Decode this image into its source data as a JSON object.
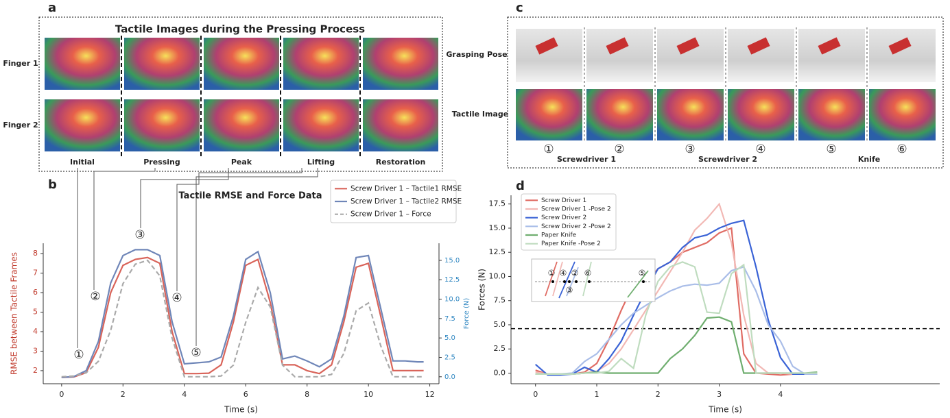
{
  "panel_a": {
    "label": "a",
    "title": "Tactile Images during the Pressing Process",
    "rows": [
      "Finger 1",
      "Finger 2"
    ],
    "stages": [
      "Initial",
      "Pressing",
      "Peak",
      "Lifting",
      "Restoration"
    ]
  },
  "panel_c": {
    "label": "c",
    "rows": [
      "Grasping Pose",
      "Tactile Image"
    ],
    "poses": [
      "①",
      "②",
      "③",
      "④",
      "⑤",
      "⑥"
    ],
    "tools": [
      "Screwdriver 1",
      "Screwdriver 2",
      "Knife"
    ]
  },
  "chart_data": [
    {
      "type": "line",
      "panel_label": "b",
      "title": "Tactile RMSE and Force Data",
      "xlabel": "Time (s)",
      "ylabel": "RMSE between Tactile Frames",
      "y2label": "Force (N)",
      "y_axis_color": "#c0392b",
      "y2_axis_color": "#2e86c1",
      "markers": [
        "①",
        "②",
        "③",
        "④",
        "⑤"
      ],
      "xlim": [
        -0.6,
        12.3
      ],
      "xticks": [
        0,
        2,
        4,
        6,
        8,
        10,
        12
      ],
      "ylim": [
        1.33,
        8.53
      ],
      "yticks": [
        2,
        3,
        4,
        5,
        6,
        7,
        8
      ],
      "y2lim": [
        -0.9,
        17.2
      ],
      "y2ticks": [
        {
          "value": 0,
          "label": "0.0"
        },
        {
          "value": 2.5,
          "label": "2.5"
        },
        {
          "value": 5,
          "label": "5.0"
        },
        {
          "value": 7.5,
          "label": "7.5"
        },
        {
          "value": 10,
          "label": "10.0"
        },
        {
          "value": 12.5,
          "label": "12.5"
        },
        {
          "value": 15,
          "label": "15.0"
        }
      ],
      "x": [
        0,
        0.4,
        0.8,
        1.2,
        1.6,
        2.0,
        2.4,
        2.8,
        3.2,
        3.6,
        4.0,
        4.4,
        4.8,
        5.2,
        5.6,
        6.0,
        6.4,
        6.8,
        7.2,
        7.6,
        8.0,
        8.4,
        8.8,
        9.2,
        9.6,
        10.0,
        10.4,
        10.8,
        11.2,
        11.6,
        11.8
      ],
      "series": [
        {
          "name": "Screw Driver 1 – Tactile1 RMSE",
          "color": "#d9645a",
          "axis": "y",
          "values": [
            1.65,
            1.68,
            1.9,
            3.2,
            6.0,
            7.4,
            7.7,
            7.8,
            7.5,
            4.0,
            1.85,
            1.85,
            1.87,
            2.3,
            4.5,
            7.4,
            7.7,
            5.5,
            2.3,
            2.3,
            2.0,
            1.85,
            2.3,
            4.5,
            7.3,
            7.5,
            4.8,
            2.0,
            2.0,
            2.0,
            2.0
          ]
        },
        {
          "name": "Screw Driver 1 – Tactile2 RMSE",
          "color": "#6f86b8",
          "axis": "y",
          "values": [
            1.65,
            1.7,
            2.0,
            3.5,
            6.5,
            7.9,
            8.2,
            8.2,
            7.9,
            4.5,
            2.35,
            2.4,
            2.45,
            2.7,
            4.8,
            7.7,
            8.1,
            6.0,
            2.6,
            2.75,
            2.5,
            2.2,
            2.6,
            4.8,
            7.8,
            7.9,
            5.2,
            2.5,
            2.5,
            2.45,
            2.45
          ]
        },
        {
          "name": "Screw Driver 1 – Force",
          "color": "#aaaaaa",
          "axis": "y2",
          "style": "dashed",
          "values": [
            0,
            0.1,
            0.5,
            2.0,
            6.0,
            12.0,
            14.5,
            15.0,
            13.0,
            5.0,
            0.0,
            0.0,
            0.0,
            0.1,
            1.5,
            7.0,
            11.5,
            9.0,
            1.5,
            0.0,
            0.0,
            0.0,
            0.3,
            3.0,
            8.5,
            9.5,
            4.0,
            0.0,
            0.0,
            0.0,
            0.0
          ]
        }
      ]
    },
    {
      "type": "line",
      "panel_label": "d",
      "xlabel": "Time (s)",
      "ylabel": "Forces (N)",
      "inset_labels": [
        "①",
        "④",
        "②",
        "⑥",
        "③",
        "⑤"
      ],
      "xlim": [
        -0.4,
        6.6
      ],
      "xticks": [
        0,
        1,
        2,
        3,
        4
      ],
      "ylim": [
        -1.1,
        18.4
      ],
      "yticks": [
        {
          "value": 0,
          "label": "0.0"
        },
        {
          "value": 2.5,
          "label": "2.5"
        },
        {
          "value": 5,
          "label": "5.0"
        },
        {
          "value": 7.5,
          "label": "7.5"
        },
        {
          "value": 10,
          "label": "10.0"
        },
        {
          "value": 12.5,
          "label": "12.5"
        },
        {
          "value": 15,
          "label": "15.0"
        },
        {
          "value": 17.5,
          "label": "17.5"
        }
      ],
      "hlines": [
        {
          "y": 4.6,
          "color": "#000000",
          "style": "dashed"
        }
      ],
      "x": [
        0,
        0.2,
        0.4,
        0.6,
        0.8,
        1.0,
        1.2,
        1.4,
        1.6,
        1.8,
        2.0,
        2.2,
        2.4,
        2.6,
        2.8,
        3.0,
        3.2,
        3.4,
        3.6,
        3.8,
        4.0,
        4.2,
        4.4,
        4.6
      ],
      "series": [
        {
          "name": "Screw Driver 1",
          "color": "#e06c64",
          "values": [
            0.3,
            -0.1,
            -0.1,
            -0.1,
            0.1,
            1.0,
            3.5,
            6.5,
            9.2,
            9.3,
            10.8,
            11.5,
            12.5,
            13.0,
            13.5,
            14.5,
            15.0,
            2.0,
            0.0,
            -0.1,
            -0.2,
            -0.1,
            -0.1,
            -0.1
          ]
        },
        {
          "name": "Screw Driver 1 -Pose 2",
          "color": "#f2b8b4",
          "values": [
            0.1,
            -0.1,
            -0.1,
            -0.1,
            0.0,
            0.2,
            1.0,
            2.5,
            4.5,
            6.5,
            8.5,
            10.5,
            12.5,
            14.8,
            16.0,
            17.5,
            13.5,
            6.0,
            1.0,
            0.0,
            0.0,
            -0.1,
            -0.1,
            -0.1
          ]
        },
        {
          "name": "Screw Driver 2",
          "color": "#3a63d6",
          "values": [
            0.9,
            -0.2,
            -0.2,
            -0.1,
            0.6,
            0.1,
            1.5,
            3.3,
            6.0,
            8.5,
            10.8,
            11.5,
            13.0,
            14.0,
            14.3,
            15.0,
            15.5,
            15.8,
            11.0,
            5.5,
            1.6,
            -0.1,
            -0.1,
            -0.1
          ]
        },
        {
          "name": "Screw Driver 2 -Pose 2",
          "color": "#a9bde8",
          "values": [
            -0.1,
            -0.1,
            -0.1,
            0.0,
            1.2,
            2.0,
            3.5,
            5.0,
            6.2,
            7.0,
            7.8,
            8.5,
            9.0,
            9.2,
            9.1,
            9.3,
            10.6,
            11.0,
            8.5,
            5.0,
            3.3,
            0.7,
            -0.1,
            -0.1
          ]
        },
        {
          "name": "Paper Knife",
          "color": "#6fae6f",
          "values": [
            -0.1,
            -0.1,
            -0.1,
            -0.1,
            0.0,
            0.1,
            0.0,
            0.0,
            0.0,
            0.0,
            0.0,
            1.5,
            2.5,
            3.9,
            5.7,
            5.8,
            5.3,
            0.0,
            0.0,
            0.0,
            0.0,
            0.0,
            0.0,
            0.1
          ]
        },
        {
          "name": "Paper Knife -Pose 2",
          "color": "#bfdcbf",
          "values": [
            -0.1,
            -0.1,
            -0.1,
            -0.1,
            0.0,
            0.0,
            0.2,
            1.5,
            0.5,
            6.0,
            9.5,
            11.0,
            11.5,
            11.0,
            6.3,
            6.2,
            10.3,
            11.2,
            0.0,
            0.0,
            0.0,
            0.0,
            0.0,
            0.0
          ]
        }
      ]
    }
  ]
}
